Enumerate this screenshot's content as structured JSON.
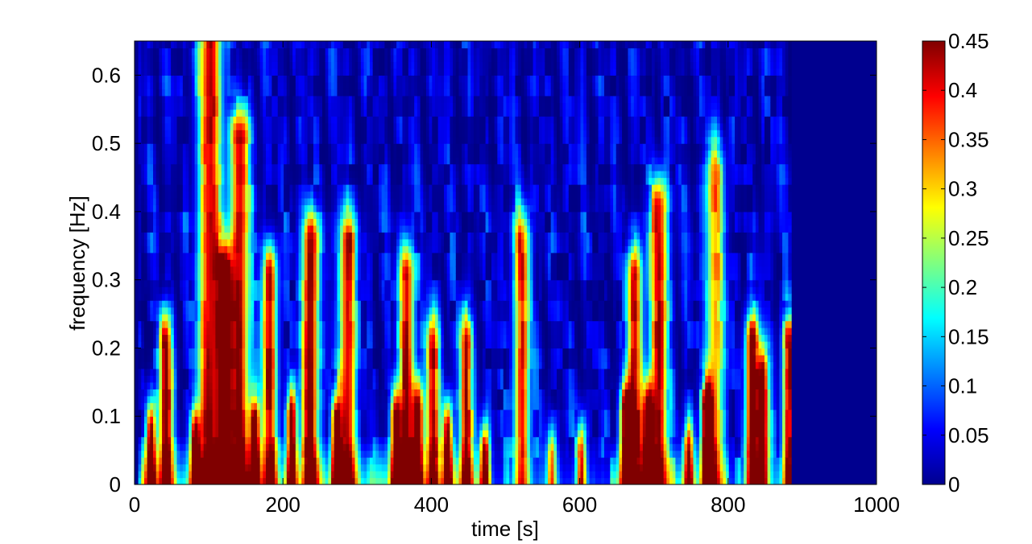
{
  "chart_data": {
    "type": "heatmap",
    "title": "",
    "xlabel": "time [s]",
    "ylabel": "frequency [Hz]",
    "xlim": [
      0,
      1000
    ],
    "ylim": [
      0,
      0.65
    ],
    "x_ticks": [
      "0",
      "200",
      "400",
      "600",
      "800",
      "1000"
    ],
    "x_tick_values": [
      0,
      200,
      400,
      600,
      800,
      1000
    ],
    "y_ticks": [
      "0",
      "0.1",
      "0.2",
      "0.3",
      "0.4",
      "0.5",
      "0.6"
    ],
    "y_tick_values": [
      0,
      0.1,
      0.2,
      0.3,
      0.4,
      0.5,
      0.6
    ],
    "colorbar": {
      "colormap": "jet",
      "limits": [
        0,
        0.45
      ],
      "ticks": [
        "0",
        "0.05",
        "0.1",
        "0.15",
        "0.2",
        "0.25",
        "0.3",
        "0.35",
        "0.4",
        "0.45"
      ],
      "tick_values": [
        0,
        0.05,
        0.1,
        0.15,
        0.2,
        0.25,
        0.3,
        0.35,
        0.4,
        0.45
      ]
    },
    "data_extent_time": [
      5,
      885
    ],
    "high_energy_bands": [
      {
        "time": 20,
        "fmax": 0.07,
        "level": 0.45
      },
      {
        "time": 40,
        "fmax": 0.2,
        "level": 0.45
      },
      {
        "time": 80,
        "fmax": 0.06,
        "level": 0.45
      },
      {
        "time": 100,
        "fmax": 0.65,
        "level": 0.4
      },
      {
        "time": 120,
        "fmax": 0.3,
        "level": 0.45
      },
      {
        "time": 140,
        "fmax": 0.5,
        "level": 0.4
      },
      {
        "time": 160,
        "fmax": 0.08,
        "level": 0.45
      },
      {
        "time": 180,
        "fmax": 0.3,
        "level": 0.4
      },
      {
        "time": 210,
        "fmax": 0.09,
        "level": 0.45
      },
      {
        "time": 235,
        "fmax": 0.35,
        "level": 0.45
      },
      {
        "time": 270,
        "fmax": 0.08,
        "level": 0.45
      },
      {
        "time": 285,
        "fmax": 0.35,
        "level": 0.4
      },
      {
        "time": 350,
        "fmax": 0.09,
        "level": 0.45
      },
      {
        "time": 365,
        "fmax": 0.3,
        "level": 0.4
      },
      {
        "time": 380,
        "fmax": 0.1,
        "level": 0.45
      },
      {
        "time": 400,
        "fmax": 0.2,
        "level": 0.4
      },
      {
        "time": 420,
        "fmax": 0.07,
        "level": 0.45
      },
      {
        "time": 445,
        "fmax": 0.2,
        "level": 0.4
      },
      {
        "time": 470,
        "fmax": 0.04,
        "level": 0.4
      },
      {
        "time": 520,
        "fmax": 0.35,
        "level": 0.35
      },
      {
        "time": 560,
        "fmax": 0.03,
        "level": 0.3
      },
      {
        "time": 600,
        "fmax": 0.04,
        "level": 0.35
      },
      {
        "time": 660,
        "fmax": 0.1,
        "level": 0.45
      },
      {
        "time": 672,
        "fmax": 0.3,
        "level": 0.4
      },
      {
        "time": 690,
        "fmax": 0.1,
        "level": 0.45
      },
      {
        "time": 705,
        "fmax": 0.4,
        "level": 0.4
      },
      {
        "time": 745,
        "fmax": 0.05,
        "level": 0.35
      },
      {
        "time": 770,
        "fmax": 0.1,
        "level": 0.45
      },
      {
        "time": 780,
        "fmax": 0.45,
        "level": 0.3
      },
      {
        "time": 830,
        "fmax": 0.2,
        "level": 0.45
      },
      {
        "time": 845,
        "fmax": 0.15,
        "level": 0.45
      },
      {
        "time": 880,
        "fmax": 0.2,
        "level": 0.4
      }
    ]
  }
}
